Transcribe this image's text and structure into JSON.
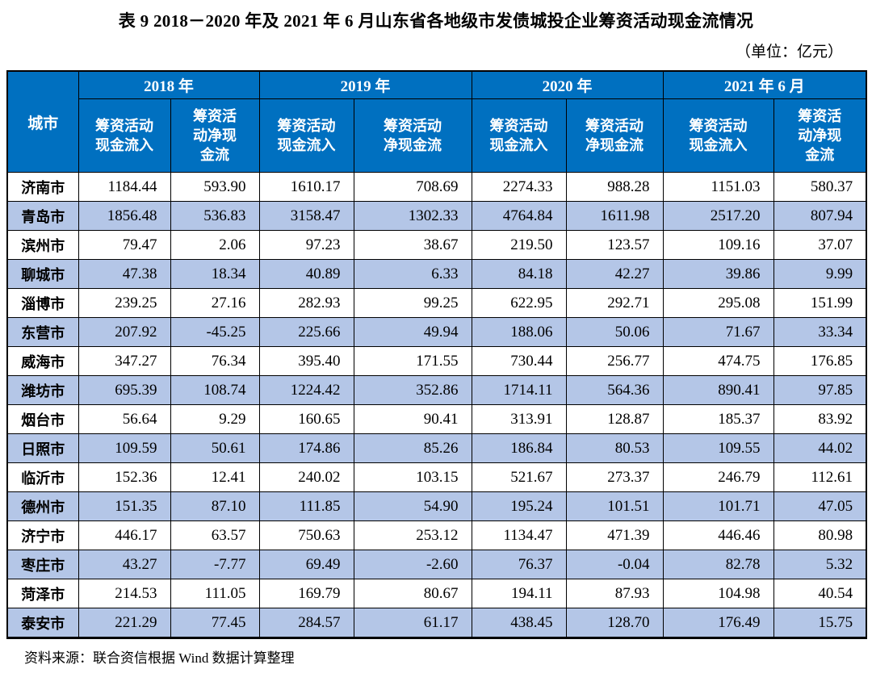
{
  "title": "表 9  2018－2020 年及 2021 年 6 月山东省各地级市发债城投企业筹资活动现金流情况",
  "unit_note": "（单位：亿元）",
  "source_note": "资料来源：联合资信根据 Wind 数据计算整理",
  "colors": {
    "header_bg": "#0070C0",
    "header_text": "#FFFFFF",
    "band_bg": "#B4C6E7",
    "border": "#000000"
  },
  "table": {
    "city_header": "城市",
    "year_groups": [
      {
        "label": "2018 年",
        "columns": [
          "筹资活动\n现金流入",
          "筹资活\n动净现\n金流"
        ]
      },
      {
        "label": "2019 年",
        "columns": [
          "筹资活动\n现金流入",
          "筹资活动\n净现金流"
        ]
      },
      {
        "label": "2020 年",
        "columns": [
          "筹资活动\n现金流入",
          "筹资活动\n净现金流"
        ]
      },
      {
        "label": "2021 年 6 月",
        "columns": [
          "筹资活动\n现金流入",
          "筹资活\n动净现\n金流"
        ]
      }
    ],
    "rows": [
      {
        "city": "济南市",
        "values": [
          "1184.44",
          "593.90",
          "1610.17",
          "708.69",
          "2274.33",
          "988.28",
          "1151.03",
          "580.37"
        ]
      },
      {
        "city": "青岛市",
        "values": [
          "1856.48",
          "536.83",
          "3158.47",
          "1302.33",
          "4764.84",
          "1611.98",
          "2517.20",
          "807.94"
        ]
      },
      {
        "city": "滨州市",
        "values": [
          "79.47",
          "2.06",
          "97.23",
          "38.67",
          "219.50",
          "123.57",
          "109.16",
          "37.07"
        ]
      },
      {
        "city": "聊城市",
        "values": [
          "47.38",
          "18.34",
          "40.89",
          "6.33",
          "84.18",
          "42.27",
          "39.86",
          "9.99"
        ]
      },
      {
        "city": "淄博市",
        "values": [
          "239.25",
          "27.16",
          "282.93",
          "99.25",
          "622.95",
          "292.71",
          "295.08",
          "151.99"
        ]
      },
      {
        "city": "东营市",
        "values": [
          "207.92",
          "-45.25",
          "225.66",
          "49.94",
          "188.06",
          "50.06",
          "71.67",
          "33.34"
        ]
      },
      {
        "city": "威海市",
        "values": [
          "347.27",
          "76.34",
          "395.40",
          "171.55",
          "730.44",
          "256.77",
          "474.75",
          "176.85"
        ]
      },
      {
        "city": "潍坊市",
        "values": [
          "695.39",
          "108.74",
          "1224.42",
          "352.86",
          "1714.11",
          "564.36",
          "890.41",
          "97.85"
        ]
      },
      {
        "city": "烟台市",
        "values": [
          "56.64",
          "9.29",
          "160.65",
          "90.41",
          "313.91",
          "128.87",
          "185.37",
          "83.92"
        ]
      },
      {
        "city": "日照市",
        "values": [
          "109.59",
          "50.61",
          "174.86",
          "85.26",
          "186.84",
          "80.53",
          "109.55",
          "44.02"
        ]
      },
      {
        "city": "临沂市",
        "values": [
          "152.36",
          "12.41",
          "240.02",
          "103.15",
          "521.67",
          "273.37",
          "246.79",
          "112.61"
        ]
      },
      {
        "city": "德州市",
        "values": [
          "151.35",
          "87.10",
          "111.85",
          "54.90",
          "195.24",
          "101.51",
          "101.71",
          "47.05"
        ]
      },
      {
        "city": "济宁市",
        "values": [
          "446.17",
          "63.57",
          "750.63",
          "253.12",
          "1134.47",
          "471.39",
          "446.46",
          "80.98"
        ]
      },
      {
        "city": "枣庄市",
        "values": [
          "43.27",
          "-7.77",
          "69.49",
          "-2.60",
          "76.37",
          "-0.04",
          "82.78",
          "5.32"
        ]
      },
      {
        "city": "菏泽市",
        "values": [
          "214.53",
          "111.05",
          "169.79",
          "80.67",
          "194.11",
          "87.93",
          "104.98",
          "40.54"
        ]
      },
      {
        "city": "泰安市",
        "values": [
          "221.29",
          "77.45",
          "284.57",
          "61.17",
          "438.45",
          "128.70",
          "176.49",
          "15.75"
        ]
      }
    ]
  }
}
